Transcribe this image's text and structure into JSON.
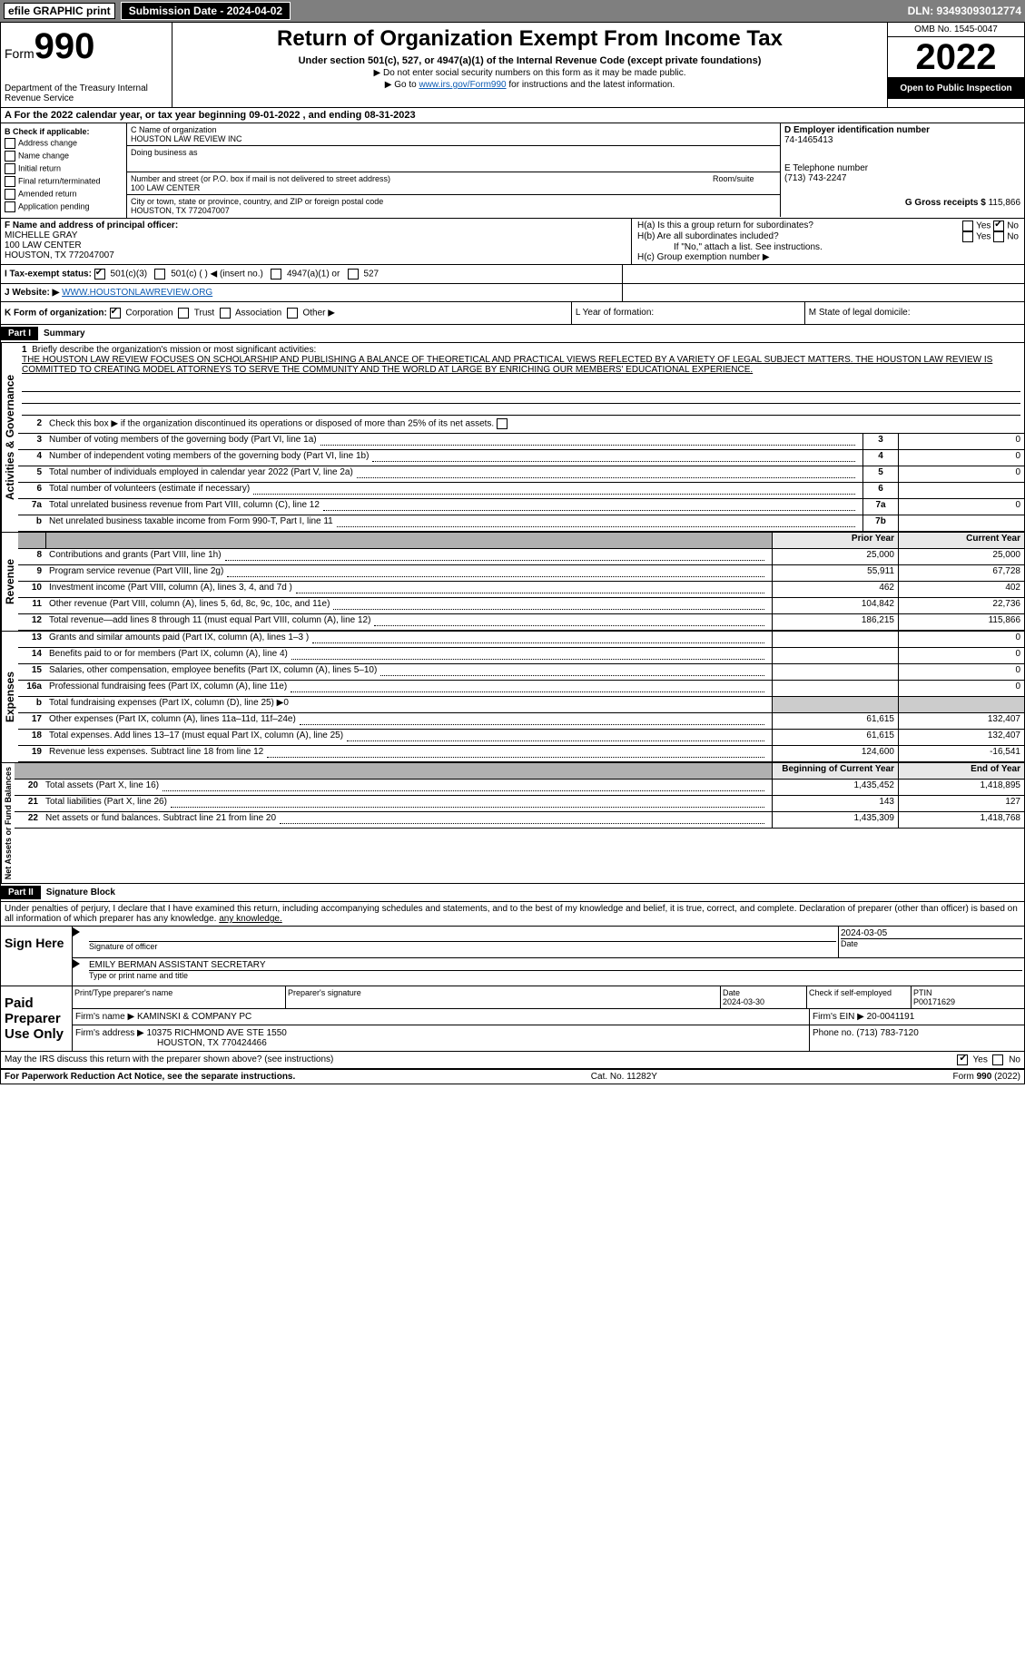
{
  "topbar": {
    "efile": "efile GRAPHIC print",
    "subdate": "Submission Date - 2024-04-02",
    "dln": "DLN: 93493093012774"
  },
  "header": {
    "form_prefix": "Form",
    "form_number": "990",
    "title": "Return of Organization Exempt From Income Tax",
    "sub": "Under section 501(c), 527, or 4947(a)(1) of the Internal Revenue Code (except private foundations)",
    "note1": "▶ Do not enter social security numbers on this form as it may be made public.",
    "note2_pre": "▶ Go to ",
    "note2_link": "www.irs.gov/Form990",
    "note2_post": " for instructions and the latest information.",
    "dept": "Department of the Treasury Internal Revenue Service",
    "omb": "OMB No. 1545-0047",
    "year": "2022",
    "open": "Open to Public Inspection"
  },
  "sectionA": "A For the 2022 calendar year, or tax year beginning 09-01-2022   , and ending 08-31-2023",
  "boxB": {
    "label": "B Check if applicable:",
    "items": [
      "Address change",
      "Name change",
      "Initial return",
      "Final return/terminated",
      "Amended return",
      "Application pending"
    ]
  },
  "boxC": {
    "label": "C Name of organization",
    "name": "HOUSTON LAW REVIEW INC",
    "dba_label": "Doing business as",
    "addr_label": "Number and street (or P.O. box if mail is not delivered to street address)",
    "room_label": "Room/suite",
    "addr": "100 LAW CENTER",
    "city_label": "City or town, state or province, country, and ZIP or foreign postal code",
    "city": "HOUSTON, TX  772047007"
  },
  "boxD": {
    "label": "D Employer identification number",
    "val": "74-1465413"
  },
  "boxE": {
    "label": "E Telephone number",
    "val": "(713) 743-2247"
  },
  "boxG": {
    "label": "G Gross receipts $",
    "val": "115,866"
  },
  "boxF": {
    "label": "F Name and address of principal officer:",
    "name": "MICHELLE GRAY",
    "addr1": "100 LAW CENTER",
    "addr2": "HOUSTON, TX  772047007"
  },
  "boxH": {
    "ha": "H(a)  Is this a group return for subordinates?",
    "hb": "H(b)  Are all subordinates included?",
    "hb_note": "If \"No,\" attach a list. See instructions.",
    "hc": "H(c)  Group exemption number ▶",
    "yes": "Yes",
    "no": "No"
  },
  "boxI": {
    "label": "I   Tax-exempt status:",
    "opts": [
      "501(c)(3)",
      "501(c) (   ) ◀ (insert no.)",
      "4947(a)(1) or",
      "527"
    ]
  },
  "boxJ": {
    "label": "J   Website: ▶",
    "val": "WWW.HOUSTONLAWREVIEW.ORG"
  },
  "boxK": {
    "label": "K Form of organization:",
    "opts": [
      "Corporation",
      "Trust",
      "Association",
      "Other ▶"
    ]
  },
  "boxL": {
    "label": "L Year of formation:"
  },
  "boxM": {
    "label": "M State of legal domicile:"
  },
  "part1": {
    "hdr": "Part I",
    "title": "Summary",
    "q1": "Briefly describe the organization's mission or most significant activities:",
    "q1_text": "THE HOUSTON LAW REVIEW FOCUSES ON SCHOLARSHIP AND PUBLISHING A BALANCE OF THEORETICAL AND PRACTICAL VIEWS REFLECTED BY A VARIETY OF LEGAL SUBJECT MATTERS. THE HOUSTON LAW REVIEW IS COMMITTED TO CREATING MODEL ATTORNEYS TO SERVE THE COMMUNITY AND THE WORLD AT LARGE BY ENRICHING OUR MEMBERS' EDUCATIONAL EXPERIENCE.",
    "q2": "Check this box ▶        if the organization discontinued its operations or disposed of more than 25% of its net assets.",
    "lines_gov": [
      {
        "n": "3",
        "d": "Number of voting members of the governing body (Part VI, line 1a)",
        "box": "3",
        "v": "0"
      },
      {
        "n": "4",
        "d": "Number of independent voting members of the governing body (Part VI, line 1b)",
        "box": "4",
        "v": "0"
      },
      {
        "n": "5",
        "d": "Total number of individuals employed in calendar year 2022 (Part V, line 2a)",
        "box": "5",
        "v": "0"
      },
      {
        "n": "6",
        "d": "Total number of volunteers (estimate if necessary)",
        "box": "6",
        "v": ""
      },
      {
        "n": "7a",
        "d": "Total unrelated business revenue from Part VIII, column (C), line 12",
        "box": "7a",
        "v": "0"
      },
      {
        "n": "b",
        "d": "Net unrelated business taxable income from Form 990-T, Part I, line 11",
        "box": "7b",
        "v": ""
      }
    ],
    "col_prior": "Prior Year",
    "col_current": "Current Year",
    "lines_rev": [
      {
        "n": "8",
        "d": "Contributions and grants (Part VIII, line 1h)",
        "p": "25,000",
        "c": "25,000"
      },
      {
        "n": "9",
        "d": "Program service revenue (Part VIII, line 2g)",
        "p": "55,911",
        "c": "67,728"
      },
      {
        "n": "10",
        "d": "Investment income (Part VIII, column (A), lines 3, 4, and 7d )",
        "p": "462",
        "c": "402"
      },
      {
        "n": "11",
        "d": "Other revenue (Part VIII, column (A), lines 5, 6d, 8c, 9c, 10c, and 11e)",
        "p": "104,842",
        "c": "22,736"
      },
      {
        "n": "12",
        "d": "Total revenue—add lines 8 through 11 (must equal Part VIII, column (A), line 12)",
        "p": "186,215",
        "c": "115,866"
      }
    ],
    "lines_exp": [
      {
        "n": "13",
        "d": "Grants and similar amounts paid (Part IX, column (A), lines 1–3 )",
        "p": "",
        "c": "0"
      },
      {
        "n": "14",
        "d": "Benefits paid to or for members (Part IX, column (A), line 4)",
        "p": "",
        "c": "0"
      },
      {
        "n": "15",
        "d": "Salaries, other compensation, employee benefits (Part IX, column (A), lines 5–10)",
        "p": "",
        "c": "0"
      },
      {
        "n": "16a",
        "d": "Professional fundraising fees (Part IX, column (A), line 11e)",
        "p": "",
        "c": "0"
      },
      {
        "n": "b",
        "d": "Total fundraising expenses (Part IX, column (D), line 25) ▶0",
        "p": null,
        "c": null
      },
      {
        "n": "17",
        "d": "Other expenses (Part IX, column (A), lines 11a–11d, 11f–24e)",
        "p": "61,615",
        "c": "132,407"
      },
      {
        "n": "18",
        "d": "Total expenses. Add lines 13–17 (must equal Part IX, column (A), line 25)",
        "p": "61,615",
        "c": "132,407"
      },
      {
        "n": "19",
        "d": "Revenue less expenses. Subtract line 18 from line 12",
        "p": "124,600",
        "c": "-16,541"
      }
    ],
    "col_begin": "Beginning of Current Year",
    "col_end": "End of Year",
    "lines_net": [
      {
        "n": "20",
        "d": "Total assets (Part X, line 16)",
        "p": "1,435,452",
        "c": "1,418,895"
      },
      {
        "n": "21",
        "d": "Total liabilities (Part X, line 26)",
        "p": "143",
        "c": "127"
      },
      {
        "n": "22",
        "d": "Net assets or fund balances. Subtract line 21 from line 20",
        "p": "1,435,309",
        "c": "1,418,768"
      }
    ],
    "vert_gov": "Activities & Governance",
    "vert_rev": "Revenue",
    "vert_exp": "Expenses",
    "vert_net": "Net Assets or Fund Balances"
  },
  "part2": {
    "hdr": "Part II",
    "title": "Signature Block",
    "penalty": "Under penalties of perjury, I declare that I have examined this return, including accompanying schedules and statements, and to the best of my knowledge and belief, it is true, correct, and complete. Declaration of preparer (other than officer) is based on all information of which preparer has any knowledge.",
    "sign_here": "Sign Here",
    "sig_officer": "Signature of officer",
    "sig_date": "Date",
    "sig_date_val": "2024-03-05",
    "officer_name": "EMILY BERMAN  ASSISTANT SECRETARY",
    "officer_type": "Type or print name and title",
    "paid": "Paid Preparer Use Only",
    "prep_name_label": "Print/Type preparer's name",
    "prep_sig_label": "Preparer's signature",
    "prep_date_label": "Date",
    "prep_date_val": "2024-03-30",
    "prep_check": "Check         if self-employed",
    "ptin_label": "PTIN",
    "ptin_val": "P00171629",
    "firm_name_label": "Firm's name    ▶",
    "firm_name": "KAMINSKI & COMPANY PC",
    "firm_ein_label": "Firm's EIN ▶",
    "firm_ein": "20-0041191",
    "firm_addr_label": "Firm's address ▶",
    "firm_addr": "10375 RICHMOND AVE STE 1550",
    "firm_city": "HOUSTON, TX  770424466",
    "firm_phone_label": "Phone no.",
    "firm_phone": "(713) 783-7120",
    "may_irs": "May the IRS discuss this return with the preparer shown above? (see instructions)"
  },
  "footer": {
    "left": "For Paperwork Reduction Act Notice, see the separate instructions.",
    "mid": "Cat. No. 11282Y",
    "right": "Form 990 (2022)"
  }
}
